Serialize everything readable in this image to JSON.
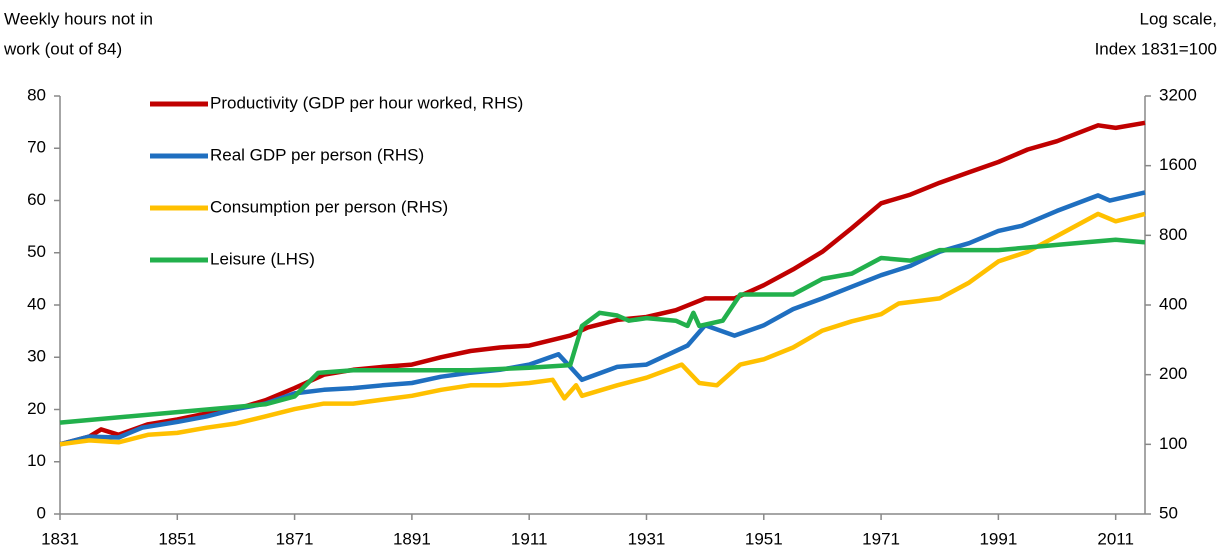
{
  "chart_data": {
    "type": "line",
    "y_label": [
      "Weekly hours not in",
      "work (out of 84)"
    ],
    "y2_label": [
      "Log scale,",
      "Index 1831=100"
    ],
    "xlim": [
      1831,
      2016
    ],
    "xticks": [
      1831,
      1851,
      1871,
      1891,
      1911,
      1931,
      1951,
      1971,
      1991,
      2011
    ],
    "ylim": [
      0,
      80
    ],
    "yticks": [
      0,
      10,
      20,
      30,
      40,
      50,
      60,
      70,
      80
    ],
    "y2lim": [
      50,
      3200
    ],
    "y2ticks": [
      50,
      100,
      200,
      400,
      800,
      1600,
      3200
    ],
    "y2scale": "log",
    "legend": "upper left",
    "series": [
      {
        "name": "Productivity (GDP per hour worked, RHS)",
        "color": "#c00000",
        "axis": "y2",
        "x": [
          1831,
          1836,
          1838,
          1841,
          1846,
          1851,
          1856,
          1861,
          1866,
          1871,
          1876,
          1881,
          1886,
          1891,
          1896,
          1901,
          1906,
          1911,
          1918,
          1921,
          1926,
          1931,
          1936,
          1941,
          1946,
          1951,
          1956,
          1961,
          1966,
          1971,
          1976,
          1981,
          1986,
          1991,
          1996,
          2001,
          2008,
          2011,
          2016
        ],
        "values": [
          100,
          108,
          116,
          110,
          122,
          128,
          136,
          142,
          155,
          175,
          200,
          210,
          216,
          221,
          238,
          253,
          262,
          267,
          295,
          320,
          345,
          355,
          380,
          427,
          427,
          487,
          570,
          680,
          860,
          1100,
          1200,
          1350,
          1500,
          1660,
          1880,
          2040,
          2390,
          2330,
          2450
        ]
      },
      {
        "name": "Real GDP per person (RHS)",
        "color": "#1f6fc0",
        "axis": "y2",
        "x": [
          1831,
          1836,
          1841,
          1845,
          1851,
          1856,
          1861,
          1866,
          1871,
          1876,
          1881,
          1886,
          1891,
          1896,
          1901,
          1906,
          1911,
          1916,
          1918,
          1920,
          1926,
          1931,
          1938,
          1941,
          1946,
          1951,
          1956,
          1961,
          1966,
          1971,
          1976,
          1981,
          1986,
          1991,
          1995,
          2001,
          2008,
          2010,
          2016
        ],
        "values": [
          100,
          108,
          107,
          118,
          125,
          132,
          142,
          150,
          166,
          172,
          175,
          180,
          184,
          196,
          204,
          210,
          221,
          245,
          216,
          190,
          216,
          221,
          267,
          327,
          295,
          327,
          384,
          427,
          480,
          538,
          590,
          680,
          740,
          836,
          880,
          1020,
          1190,
          1130,
          1225
        ]
      },
      {
        "name": "Consumption per person (RHS)",
        "color": "#ffc000",
        "axis": "y2",
        "x": [
          1831,
          1836,
          1841,
          1846,
          1851,
          1856,
          1861,
          1866,
          1871,
          1876,
          1881,
          1886,
          1891,
          1896,
          1901,
          1906,
          1911,
          1915,
          1917,
          1919,
          1920,
          1926,
          1931,
          1937,
          1940,
          1943,
          1947,
          1951,
          1956,
          1961,
          1966,
          1971,
          1974,
          1981,
          1986,
          1991,
          1996,
          2001,
          2008,
          2011,
          2016
        ],
        "values": [
          100,
          104,
          102,
          110,
          112,
          118,
          123,
          132,
          142,
          150,
          150,
          156,
          162,
          172,
          180,
          180,
          184,
          190,
          158,
          180,
          162,
          180,
          194,
          221,
          184,
          180,
          221,
          233,
          262,
          310,
          340,
          365,
          406,
          427,
          500,
          617,
          680,
          795,
          990,
          920,
          990
        ]
      },
      {
        "name": "Leisure (LHS)",
        "color": "#22b04c",
        "axis": "y",
        "x": [
          1831,
          1851,
          1866,
          1871,
          1875,
          1881,
          1891,
          1901,
          1911,
          1918,
          1920,
          1923,
          1926,
          1928,
          1931,
          1936,
          1938,
          1939,
          1940,
          1944,
          1947,
          1951,
          1956,
          1961,
          1966,
          1971,
          1976,
          1981,
          1986,
          1991,
          1996,
          2001,
          2006,
          2011,
          2016
        ],
        "values": [
          17.5,
          19.5,
          21,
          22.5,
          27,
          27.5,
          27.5,
          27.5,
          28,
          28.5,
          36,
          38.5,
          38,
          37,
          37.5,
          37,
          36,
          38.5,
          36,
          37,
          42,
          42,
          42,
          45,
          46,
          49,
          48.5,
          50.5,
          50.5,
          50.5,
          51,
          51.5,
          52,
          52.5,
          52
        ]
      }
    ]
  }
}
